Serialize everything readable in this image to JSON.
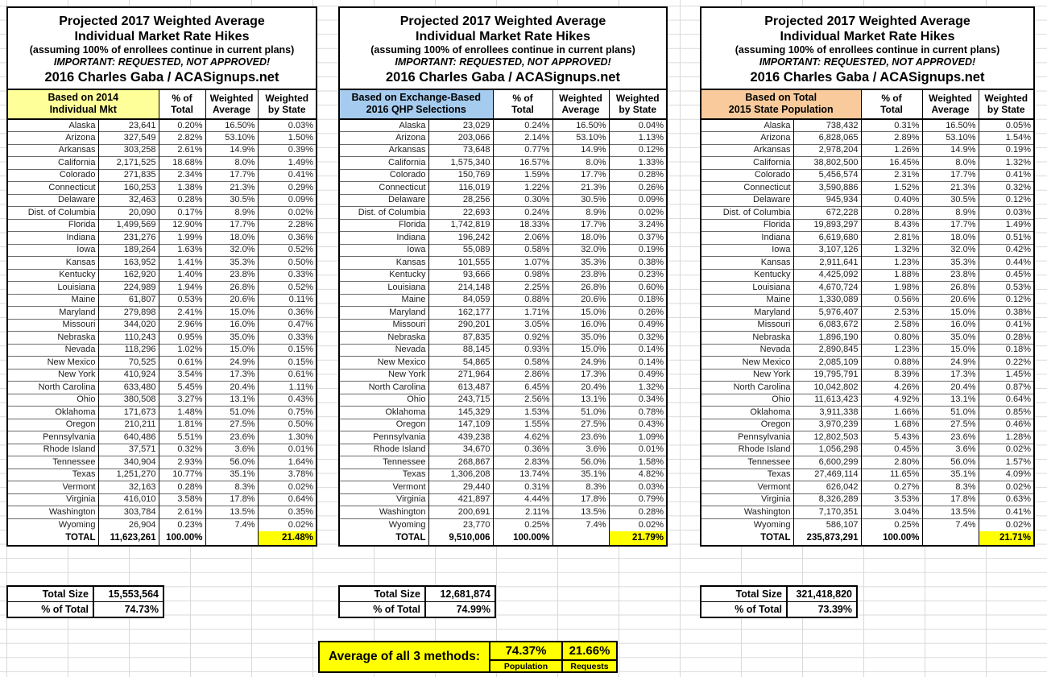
{
  "title_lines": [
    "Projected 2017 Weighted Average",
    "Individual Market Rate Hikes",
    "(assuming 100% of enrollees continue in current plans)",
    "IMPORTANT: REQUESTED, NOT APPROVED!",
    "2016 Charles Gaba / ACASignups.net"
  ],
  "column_headers": {
    "pct": [
      "% of",
      "Total"
    ],
    "wavg": [
      "Weighted",
      "Average"
    ],
    "wstate": [
      "Weighted",
      "by State"
    ]
  },
  "colors": {
    "header_yellow": "#FFFF99",
    "header_blue": "#A5CBEE",
    "header_orange": "#F9CB9C",
    "highlight_yellow": "#FFFF00",
    "grid_line": "#D9D9D9"
  },
  "tables": [
    {
      "category_header": {
        "line1": "Based on 2014",
        "line2": "Individual Mkt",
        "bg": "#FFFF99"
      },
      "rows": [
        [
          "Alaska",
          "23,641",
          "0.20%",
          "16.50%",
          "0.03%"
        ],
        [
          "Arizona",
          "327,549",
          "2.82%",
          "53.10%",
          "1.50%"
        ],
        [
          "Arkansas",
          "303,258",
          "2.61%",
          "14.9%",
          "0.39%"
        ],
        [
          "California",
          "2,171,525",
          "18.68%",
          "8.0%",
          "1.49%"
        ],
        [
          "Colorado",
          "271,835",
          "2.34%",
          "17.7%",
          "0.41%"
        ],
        [
          "Connecticut",
          "160,253",
          "1.38%",
          "21.3%",
          "0.29%"
        ],
        [
          "Delaware",
          "32,463",
          "0.28%",
          "30.5%",
          "0.09%"
        ],
        [
          "Dist. of Columbia",
          "20,090",
          "0.17%",
          "8.9%",
          "0.02%"
        ],
        [
          "Florida",
          "1,499,569",
          "12.90%",
          "17.7%",
          "2.28%"
        ],
        [
          "Indiana",
          "231,276",
          "1.99%",
          "18.0%",
          "0.36%"
        ],
        [
          "Iowa",
          "189,264",
          "1.63%",
          "32.0%",
          "0.52%"
        ],
        [
          "Kansas",
          "163,952",
          "1.41%",
          "35.3%",
          "0.50%"
        ],
        [
          "Kentucky",
          "162,920",
          "1.40%",
          "23.8%",
          "0.33%"
        ],
        [
          "Louisiana",
          "224,989",
          "1.94%",
          "26.8%",
          "0.52%"
        ],
        [
          "Maine",
          "61,807",
          "0.53%",
          "20.6%",
          "0.11%"
        ],
        [
          "Maryland",
          "279,898",
          "2.41%",
          "15.0%",
          "0.36%"
        ],
        [
          "Missouri",
          "344,020",
          "2.96%",
          "16.0%",
          "0.47%"
        ],
        [
          "Nebraska",
          "110,243",
          "0.95%",
          "35.0%",
          "0.33%"
        ],
        [
          "Nevada",
          "118,296",
          "1.02%",
          "15.0%",
          "0.15%"
        ],
        [
          "New Mexico",
          "70,525",
          "0.61%",
          "24.9%",
          "0.15%"
        ],
        [
          "New York",
          "410,924",
          "3.54%",
          "17.3%",
          "0.61%"
        ],
        [
          "North Carolina",
          "633,480",
          "5.45%",
          "20.4%",
          "1.11%"
        ],
        [
          "Ohio",
          "380,508",
          "3.27%",
          "13.1%",
          "0.43%"
        ],
        [
          "Oklahoma",
          "171,673",
          "1.48%",
          "51.0%",
          "0.75%"
        ],
        [
          "Oregon",
          "210,211",
          "1.81%",
          "27.5%",
          "0.50%"
        ],
        [
          "Pennsylvania",
          "640,486",
          "5.51%",
          "23.6%",
          "1.30%"
        ],
        [
          "Rhode Island",
          "37,571",
          "0.32%",
          "3.6%",
          "0.01%"
        ],
        [
          "Tennessee",
          "340,904",
          "2.93%",
          "56.0%",
          "1.64%"
        ],
        [
          "Texas",
          "1,251,270",
          "10.77%",
          "35.1%",
          "3.78%"
        ],
        [
          "Vermont",
          "32,163",
          "0.28%",
          "8.3%",
          "0.02%"
        ],
        [
          "Virginia",
          "416,010",
          "3.58%",
          "17.8%",
          "0.64%"
        ],
        [
          "Washington",
          "303,784",
          "2.61%",
          "13.5%",
          "0.35%"
        ],
        [
          "Wyoming",
          "26,904",
          "0.23%",
          "7.4%",
          "0.02%"
        ]
      ],
      "total": {
        "label": "TOTAL",
        "value": "11,623,261",
        "pct": "100.00%",
        "wavg": "",
        "wstate": "21.48%"
      },
      "summary": {
        "size_label": "Total Size",
        "size_value": "15,553,564",
        "pct_label": "% of Total",
        "pct_value": "74.73%"
      }
    },
    {
      "category_header": {
        "line1": "Based on Exchange-Based",
        "line2": "2016 QHP Selections",
        "bg": "#A5CBEE"
      },
      "rows": [
        [
          "Alaska",
          "23,029",
          "0.24%",
          "16.50%",
          "0.04%"
        ],
        [
          "Arizona",
          "203,066",
          "2.14%",
          "53.10%",
          "1.13%"
        ],
        [
          "Arkansas",
          "73,648",
          "0.77%",
          "14.9%",
          "0.12%"
        ],
        [
          "California",
          "1,575,340",
          "16.57%",
          "8.0%",
          "1.33%"
        ],
        [
          "Colorado",
          "150,769",
          "1.59%",
          "17.7%",
          "0.28%"
        ],
        [
          "Connecticut",
          "116,019",
          "1.22%",
          "21.3%",
          "0.26%"
        ],
        [
          "Delaware",
          "28,256",
          "0.30%",
          "30.5%",
          "0.09%"
        ],
        [
          "Dist. of Columbia",
          "22,693",
          "0.24%",
          "8.9%",
          "0.02%"
        ],
        [
          "Florida",
          "1,742,819",
          "18.33%",
          "17.7%",
          "3.24%"
        ],
        [
          "Indiana",
          "196,242",
          "2.06%",
          "18.0%",
          "0.37%"
        ],
        [
          "Iowa",
          "55,089",
          "0.58%",
          "32.0%",
          "0.19%"
        ],
        [
          "Kansas",
          "101,555",
          "1.07%",
          "35.3%",
          "0.38%"
        ],
        [
          "Kentucky",
          "93,666",
          "0.98%",
          "23.8%",
          "0.23%"
        ],
        [
          "Louisiana",
          "214,148",
          "2.25%",
          "26.8%",
          "0.60%"
        ],
        [
          "Maine",
          "84,059",
          "0.88%",
          "20.6%",
          "0.18%"
        ],
        [
          "Maryland",
          "162,177",
          "1.71%",
          "15.0%",
          "0.26%"
        ],
        [
          "Missouri",
          "290,201",
          "3.05%",
          "16.0%",
          "0.49%"
        ],
        [
          "Nebraska",
          "87,835",
          "0.92%",
          "35.0%",
          "0.32%"
        ],
        [
          "Nevada",
          "88,145",
          "0.93%",
          "15.0%",
          "0.14%"
        ],
        [
          "New Mexico",
          "54,865",
          "0.58%",
          "24.9%",
          "0.14%"
        ],
        [
          "New York",
          "271,964",
          "2.86%",
          "17.3%",
          "0.49%"
        ],
        [
          "North Carolina",
          "613,487",
          "6.45%",
          "20.4%",
          "1.32%"
        ],
        [
          "Ohio",
          "243,715",
          "2.56%",
          "13.1%",
          "0.34%"
        ],
        [
          "Oklahoma",
          "145,329",
          "1.53%",
          "51.0%",
          "0.78%"
        ],
        [
          "Oregon",
          "147,109",
          "1.55%",
          "27.5%",
          "0.43%"
        ],
        [
          "Pennsylvania",
          "439,238",
          "4.62%",
          "23.6%",
          "1.09%"
        ],
        [
          "Rhode Island",
          "34,670",
          "0.36%",
          "3.6%",
          "0.01%"
        ],
        [
          "Tennessee",
          "268,867",
          "2.83%",
          "56.0%",
          "1.58%"
        ],
        [
          "Texas",
          "1,306,208",
          "13.74%",
          "35.1%",
          "4.82%"
        ],
        [
          "Vermont",
          "29,440",
          "0.31%",
          "8.3%",
          "0.03%"
        ],
        [
          "Virginia",
          "421,897",
          "4.44%",
          "17.8%",
          "0.79%"
        ],
        [
          "Washington",
          "200,691",
          "2.11%",
          "13.5%",
          "0.28%"
        ],
        [
          "Wyoming",
          "23,770",
          "0.25%",
          "7.4%",
          "0.02%"
        ]
      ],
      "total": {
        "label": "TOTAL",
        "value": "9,510,006",
        "pct": "100.00%",
        "wavg": "",
        "wstate": "21.79%"
      },
      "summary": {
        "size_label": "Total Size",
        "size_value": "12,681,874",
        "pct_label": "% of Total",
        "pct_value": "74.99%"
      }
    },
    {
      "category_header": {
        "line1": "Based on Total",
        "line2": "2015 State Population",
        "bg": "#F9CB9C"
      },
      "rows": [
        [
          "Alaska",
          "738,432",
          "0.31%",
          "16.50%",
          "0.05%"
        ],
        [
          "Arizona",
          "6,828,065",
          "2.89%",
          "53.10%",
          "1.54%"
        ],
        [
          "Arkansas",
          "2,978,204",
          "1.26%",
          "14.9%",
          "0.19%"
        ],
        [
          "California",
          "38,802,500",
          "16.45%",
          "8.0%",
          "1.32%"
        ],
        [
          "Colorado",
          "5,456,574",
          "2.31%",
          "17.7%",
          "0.41%"
        ],
        [
          "Connecticut",
          "3,590,886",
          "1.52%",
          "21.3%",
          "0.32%"
        ],
        [
          "Delaware",
          "945,934",
          "0.40%",
          "30.5%",
          "0.12%"
        ],
        [
          "Dist. of Columbia",
          "672,228",
          "0.28%",
          "8.9%",
          "0.03%"
        ],
        [
          "Florida",
          "19,893,297",
          "8.43%",
          "17.7%",
          "1.49%"
        ],
        [
          "Indiana",
          "6,619,680",
          "2.81%",
          "18.0%",
          "0.51%"
        ],
        [
          "Iowa",
          "3,107,126",
          "1.32%",
          "32.0%",
          "0.42%"
        ],
        [
          "Kansas",
          "2,911,641",
          "1.23%",
          "35.3%",
          "0.44%"
        ],
        [
          "Kentucky",
          "4,425,092",
          "1.88%",
          "23.8%",
          "0.45%"
        ],
        [
          "Louisiana",
          "4,670,724",
          "1.98%",
          "26.8%",
          "0.53%"
        ],
        [
          "Maine",
          "1,330,089",
          "0.56%",
          "20.6%",
          "0.12%"
        ],
        [
          "Maryland",
          "5,976,407",
          "2.53%",
          "15.0%",
          "0.38%"
        ],
        [
          "Missouri",
          "6,083,672",
          "2.58%",
          "16.0%",
          "0.41%"
        ],
        [
          "Nebraska",
          "1,896,190",
          "0.80%",
          "35.0%",
          "0.28%"
        ],
        [
          "Nevada",
          "2,890,845",
          "1.23%",
          "15.0%",
          "0.18%"
        ],
        [
          "New Mexico",
          "2,085,109",
          "0.88%",
          "24.9%",
          "0.22%"
        ],
        [
          "New York",
          "19,795,791",
          "8.39%",
          "17.3%",
          "1.45%"
        ],
        [
          "North Carolina",
          "10,042,802",
          "4.26%",
          "20.4%",
          "0.87%"
        ],
        [
          "Ohio",
          "11,613,423",
          "4.92%",
          "13.1%",
          "0.64%"
        ],
        [
          "Oklahoma",
          "3,911,338",
          "1.66%",
          "51.0%",
          "0.85%"
        ],
        [
          "Oregon",
          "3,970,239",
          "1.68%",
          "27.5%",
          "0.46%"
        ],
        [
          "Pennsylvania",
          "12,802,503",
          "5.43%",
          "23.6%",
          "1.28%"
        ],
        [
          "Rhode Island",
          "1,056,298",
          "0.45%",
          "3.6%",
          "0.02%"
        ],
        [
          "Tennessee",
          "6,600,299",
          "2.80%",
          "56.0%",
          "1.57%"
        ],
        [
          "Texas",
          "27,469,114",
          "11.65%",
          "35.1%",
          "4.09%"
        ],
        [
          "Vermont",
          "626,042",
          "0.27%",
          "8.3%",
          "0.02%"
        ],
        [
          "Virginia",
          "8,326,289",
          "3.53%",
          "17.8%",
          "0.63%"
        ],
        [
          "Washington",
          "7,170,351",
          "3.04%",
          "13.5%",
          "0.41%"
        ],
        [
          "Wyoming",
          "586,107",
          "0.25%",
          "7.4%",
          "0.02%"
        ]
      ],
      "total": {
        "label": "TOTAL",
        "value": "235,873,291",
        "pct": "100.00%",
        "wavg": "",
        "wstate": "21.71%"
      },
      "summary": {
        "size_label": "Total Size",
        "size_value": "321,418,820",
        "pct_label": "% of Total",
        "pct_value": "73.39%"
      }
    }
  ],
  "footer": {
    "label": "Average of all 3 methods:",
    "population_value": "74.37%",
    "population_label": "Population",
    "requests_value": "21.66%",
    "requests_label": "Requests"
  }
}
